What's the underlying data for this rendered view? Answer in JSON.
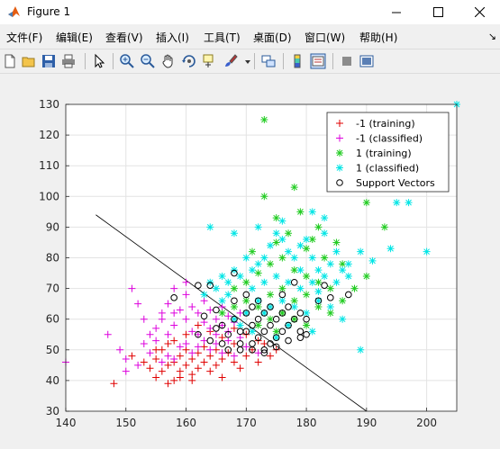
{
  "window": {
    "title": "Figure 1"
  },
  "menu": [
    "文件(F)",
    "编辑(E)",
    "查看(V)",
    "插入(I)",
    "工具(T)",
    "桌面(D)",
    "窗口(W)",
    "帮助(H)"
  ],
  "menu_overflow": "↘",
  "toolbar": [
    "new-figure-icon",
    "open-file-icon",
    "save-icon",
    "print-icon",
    "pointer-icon",
    "zoom-in-icon",
    "zoom-out-icon",
    "pan-icon",
    "rotate-3d-icon",
    "data-cursor-icon",
    "brush-icon",
    "link-plot-icon",
    "colorbar-icon",
    "legend-icon",
    "hide-plot-tools-icon",
    "show-plot-tools-icon"
  ],
  "chart_data": {
    "type": "scatter",
    "xlim": [
      140,
      205
    ],
    "ylim": [
      30,
      130
    ],
    "xticks": [
      "140",
      "150",
      "160",
      "170",
      "180",
      "190",
      "200"
    ],
    "yticks": [
      "30",
      "40",
      "50",
      "60",
      "70",
      "80",
      "90",
      "100",
      "110",
      "120",
      "130"
    ],
    "grid": true,
    "legend_position": "top-right",
    "decision_boundary": {
      "x": [
        145,
        190
      ],
      "y": [
        94,
        30
      ]
    },
    "series": [
      {
        "name": "-1 (training)",
        "marker": "+",
        "color": "#e00000",
        "points": [
          [
            148,
            39
          ],
          [
            151,
            48
          ],
          [
            153,
            46
          ],
          [
            154,
            44
          ],
          [
            155,
            41
          ],
          [
            155,
            47
          ],
          [
            156,
            43
          ],
          [
            156,
            50
          ],
          [
            157,
            45
          ],
          [
            157,
            52
          ],
          [
            158,
            40
          ],
          [
            158,
            46
          ],
          [
            159,
            48
          ],
          [
            159,
            43
          ],
          [
            160,
            45
          ],
          [
            160,
            50
          ],
          [
            161,
            42
          ],
          [
            161,
            47
          ],
          [
            162,
            49
          ],
          [
            162,
            44
          ],
          [
            163,
            46
          ],
          [
            163,
            51
          ],
          [
            164,
            43
          ],
          [
            164,
            48
          ],
          [
            165,
            45
          ],
          [
            165,
            50
          ],
          [
            166,
            41
          ],
          [
            166,
            47
          ],
          [
            167,
            49
          ],
          [
            168,
            46
          ],
          [
            168,
            52
          ],
          [
            169,
            44
          ],
          [
            170,
            48
          ],
          [
            171,
            50
          ],
          [
            172,
            46
          ],
          [
            173,
            52
          ],
          [
            174,
            48
          ],
          [
            175,
            50
          ],
          [
            160,
            55
          ],
          [
            162,
            58
          ],
          [
            164,
            56
          ],
          [
            166,
            54
          ],
          [
            168,
            57
          ],
          [
            170,
            55
          ],
          [
            172,
            53
          ],
          [
            159,
            41
          ],
          [
            157,
            39
          ],
          [
            161,
            40
          ],
          [
            155,
            50
          ],
          [
            158,
            53
          ]
        ]
      },
      {
        "name": "-1 (classified)",
        "marker": "+",
        "color": "#dd00dd",
        "points": [
          [
            140,
            46
          ],
          [
            147,
            55
          ],
          [
            149,
            50
          ],
          [
            150,
            47
          ],
          [
            151,
            70
          ],
          [
            152,
            65
          ],
          [
            153,
            52
          ],
          [
            153,
            60
          ],
          [
            154,
            55
          ],
          [
            155,
            57
          ],
          [
            156,
            60
          ],
          [
            156,
            62
          ],
          [
            157,
            55
          ],
          [
            157,
            65
          ],
          [
            158,
            58
          ],
          [
            158,
            62
          ],
          [
            159,
            63
          ],
          [
            160,
            60
          ],
          [
            160,
            68
          ],
          [
            161,
            56
          ],
          [
            161,
            64
          ],
          [
            162,
            62
          ],
          [
            162,
            55
          ],
          [
            163,
            59
          ],
          [
            163,
            66
          ],
          [
            164,
            57
          ],
          [
            164,
            63
          ],
          [
            165,
            60
          ],
          [
            165,
            55
          ],
          [
            166,
            58
          ],
          [
            166,
            64
          ],
          [
            167,
            61
          ],
          [
            167,
            56
          ],
          [
            168,
            59
          ],
          [
            169,
            62
          ],
          [
            155,
            53
          ],
          [
            157,
            48
          ],
          [
            159,
            51
          ],
          [
            161,
            49
          ],
          [
            163,
            53
          ],
          [
            165,
            52
          ],
          [
            167,
            53
          ],
          [
            169,
            54
          ],
          [
            150,
            43
          ],
          [
            152,
            45
          ],
          [
            154,
            49
          ],
          [
            156,
            46
          ],
          [
            158,
            47
          ],
          [
            160,
            52
          ],
          [
            162,
            51
          ],
          [
            164,
            50
          ],
          [
            166,
            49
          ],
          [
            168,
            48
          ],
          [
            170,
            51
          ],
          [
            172,
            49
          ],
          [
            158,
            70
          ],
          [
            160,
            72
          ]
        ]
      },
      {
        "name": "1 (training)",
        "marker": "*",
        "color": "#22cc22",
        "points": [
          [
            173,
            125
          ],
          [
            173,
            100
          ],
          [
            178,
            103
          ],
          [
            185,
            103
          ],
          [
            190,
            98
          ],
          [
            193,
            90
          ],
          [
            182,
            90
          ],
          [
            177,
            88
          ],
          [
            175,
            85
          ],
          [
            180,
            83
          ],
          [
            183,
            80
          ],
          [
            186,
            78
          ],
          [
            176,
            80
          ],
          [
            178,
            76
          ],
          [
            180,
            74
          ],
          [
            182,
            72
          ],
          [
            184,
            70
          ],
          [
            174,
            78
          ],
          [
            172,
            75
          ],
          [
            170,
            72
          ],
          [
            168,
            70
          ],
          [
            170,
            66
          ],
          [
            172,
            64
          ],
          [
            174,
            68
          ],
          [
            176,
            70
          ],
          [
            178,
            66
          ],
          [
            180,
            68
          ],
          [
            182,
            64
          ],
          [
            176,
            62
          ],
          [
            174,
            60
          ],
          [
            178,
            60
          ],
          [
            172,
            58
          ],
          [
            175,
            56
          ],
          [
            180,
            58
          ],
          [
            184,
            62
          ],
          [
            186,
            66
          ],
          [
            188,
            70
          ],
          [
            190,
            74
          ],
          [
            166,
            62
          ],
          [
            168,
            64
          ],
          [
            179,
            95
          ],
          [
            181,
            86
          ],
          [
            175,
            93
          ],
          [
            171,
            82
          ],
          [
            185,
            85
          ]
        ]
      },
      {
        "name": "1 (classified)",
        "marker": "*",
        "color": "#00e5e5",
        "points": [
          [
            205,
            130
          ],
          [
            200,
            82
          ],
          [
            197,
            98
          ],
          [
            195,
            98
          ],
          [
            194,
            83
          ],
          [
            191,
            79
          ],
          [
            189,
            82
          ],
          [
            189,
            50
          ],
          [
            187,
            78
          ],
          [
            186,
            76
          ],
          [
            185,
            82
          ],
          [
            184,
            78
          ],
          [
            183,
            88
          ],
          [
            182,
            76
          ],
          [
            181,
            80
          ],
          [
            180,
            86
          ],
          [
            179,
            84
          ],
          [
            178,
            80
          ],
          [
            177,
            82
          ],
          [
            176,
            86
          ],
          [
            175,
            88
          ],
          [
            174,
            84
          ],
          [
            173,
            80
          ],
          [
            172,
            78
          ],
          [
            171,
            76
          ],
          [
            170,
            80
          ],
          [
            169,
            74
          ],
          [
            168,
            76
          ],
          [
            167,
            72
          ],
          [
            166,
            74
          ],
          [
            165,
            70
          ],
          [
            164,
            72
          ],
          [
            163,
            68
          ],
          [
            164,
            90
          ],
          [
            168,
            88
          ],
          [
            172,
            90
          ],
          [
            176,
            92
          ],
          [
            181,
            95
          ],
          [
            183,
            93
          ],
          [
            171,
            70
          ],
          [
            173,
            72
          ],
          [
            175,
            74
          ],
          [
            177,
            72
          ],
          [
            179,
            70
          ],
          [
            181,
            72
          ],
          [
            183,
            74
          ],
          [
            185,
            72
          ],
          [
            187,
            74
          ],
          [
            172,
            66
          ],
          [
            174,
            64
          ],
          [
            176,
            66
          ],
          [
            178,
            64
          ],
          [
            180,
            62
          ],
          [
            182,
            66
          ],
          [
            184,
            64
          ],
          [
            186,
            60
          ],
          [
            170,
            62
          ],
          [
            168,
            60
          ],
          [
            166,
            66
          ],
          [
            173,
            62
          ],
          [
            177,
            58
          ],
          [
            181,
            56
          ],
          [
            175,
            54
          ],
          [
            171,
            56
          ],
          [
            169,
            58
          ],
          [
            167,
            68
          ],
          [
            179,
            76
          ],
          [
            182,
            69
          ]
        ]
      },
      {
        "name": "Support Vectors",
        "marker": "o",
        "color": "#000000",
        "points": [
          [
            158,
            67
          ],
          [
            162,
            71
          ],
          [
            164,
            71
          ],
          [
            163,
            61
          ],
          [
            165,
            63
          ],
          [
            166,
            58
          ],
          [
            166,
            52
          ],
          [
            167,
            55
          ],
          [
            168,
            60
          ],
          [
            168,
            66
          ],
          [
            168,
            75
          ],
          [
            169,
            50
          ],
          [
            169,
            52
          ],
          [
            170,
            56
          ],
          [
            170,
            62
          ],
          [
            170,
            68
          ],
          [
            171,
            52
          ],
          [
            171,
            58
          ],
          [
            171,
            64
          ],
          [
            172,
            54
          ],
          [
            172,
            60
          ],
          [
            172,
            66
          ],
          [
            173,
            50
          ],
          [
            173,
            56
          ],
          [
            173,
            62
          ],
          [
            174,
            52
          ],
          [
            174,
            58
          ],
          [
            174,
            64
          ],
          [
            175,
            54
          ],
          [
            175,
            60
          ],
          [
            176,
            56
          ],
          [
            176,
            62
          ],
          [
            176,
            68
          ],
          [
            177,
            58
          ],
          [
            177,
            64
          ],
          [
            178,
            60
          ],
          [
            178,
            72
          ],
          [
            179,
            56
          ],
          [
            179,
            62
          ],
          [
            180,
            60
          ],
          [
            180,
            55
          ],
          [
            182,
            66
          ],
          [
            183,
            71
          ],
          [
            184,
            67
          ],
          [
            187,
            68
          ],
          [
            162,
            55
          ],
          [
            164,
            53
          ],
          [
            165,
            57
          ],
          [
            167,
            50
          ],
          [
            169,
            56
          ],
          [
            171,
            50
          ],
          [
            173,
            49
          ],
          [
            175,
            51
          ],
          [
            177,
            53
          ],
          [
            179,
            54
          ]
        ]
      }
    ]
  }
}
